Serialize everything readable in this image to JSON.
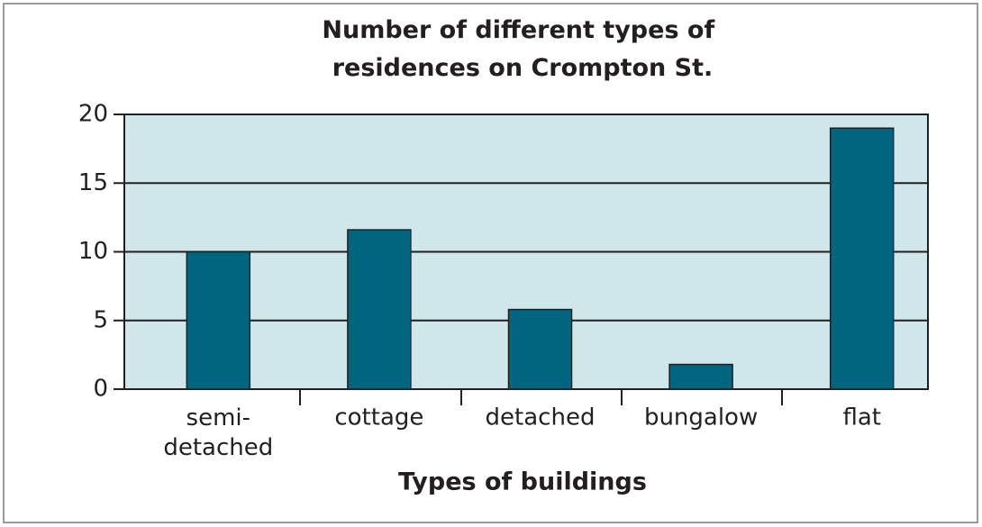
{
  "chart_data": {
    "type": "bar",
    "title": "Number of different types of residences on Crompton St.",
    "x_label": "Types of buildings",
    "categories": [
      "semi-detached",
      "cottage",
      "detached",
      "bungalow",
      "flat"
    ],
    "values": [
      10,
      11.6,
      5.8,
      1.8,
      19
    ],
    "color": "#00657e",
    "ylim": [
      0,
      20
    ],
    "yticks": [
      0,
      5,
      10,
      15,
      20
    ],
    "grid": true
  }
}
